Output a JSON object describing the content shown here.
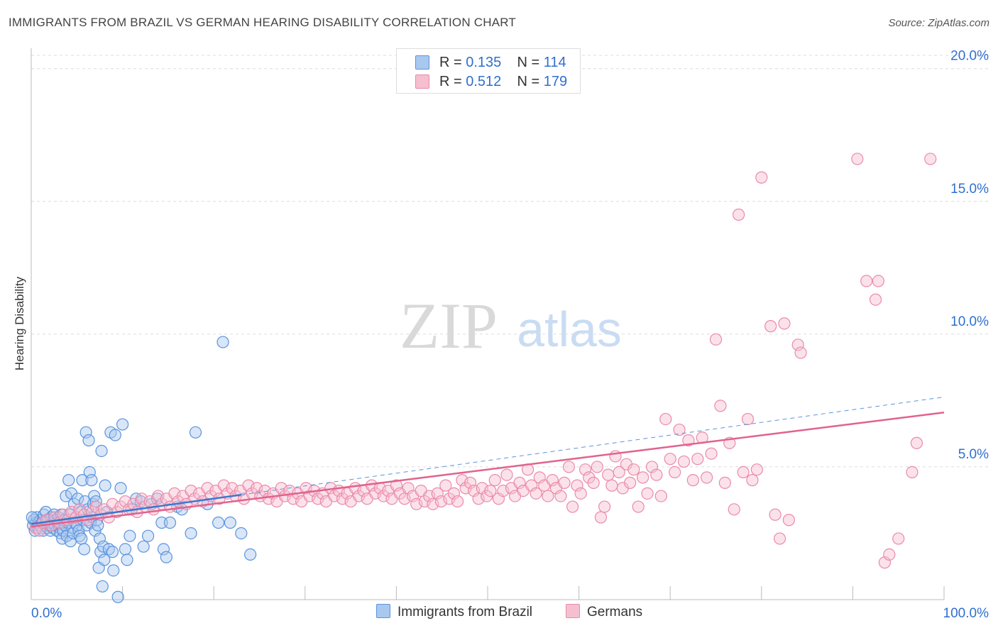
{
  "title": "IMMIGRANTS FROM BRAZIL VS GERMAN HEARING DISABILITY CORRELATION CHART",
  "source": "Source: ZipAtlas.com",
  "watermark": {
    "zip": "ZIP",
    "atlas": "atlas"
  },
  "legend_stats": [
    {
      "r_label": "R =",
      "r_value": "0.135",
      "n_label": "N =",
      "n_value": "114"
    },
    {
      "r_label": "R =",
      "r_value": "0.512",
      "n_label": "N =",
      "n_value": "179"
    }
  ],
  "colors": {
    "brazil_fill": "#a9c8ef",
    "brazil_stroke": "#5b93dc",
    "brazil_line": "#3a78cf",
    "germans_fill": "#f6bfd0",
    "germans_stroke": "#ea8aa9",
    "germans_line": "#e0638e",
    "value_text": "#2f6fcf"
  },
  "chart_data": {
    "type": "scatter",
    "title": "IMMIGRANTS FROM BRAZIL VS GERMAN HEARING DISABILITY CORRELATION CHART",
    "xlabel": "",
    "ylabel": "Hearing Disability",
    "xlim": [
      0,
      100
    ],
    "ylim": [
      0,
      20.5
    ],
    "x_tick_labels": [
      "0.0%",
      "100.0%"
    ],
    "y_ticks": [
      5,
      10,
      15,
      20
    ],
    "y_tick_labels": [
      "5.0%",
      "10.0%",
      "15.0%",
      "20.0%"
    ],
    "grid": true,
    "legend_position": "bottom",
    "series": [
      {
        "name": "Immigrants from Brazil",
        "r": 0.135,
        "n": 114,
        "trend": {
          "x": [
            0,
            23
          ],
          "y": [
            2.85,
            3.95
          ]
        },
        "points": [
          [
            0.2,
            2.8
          ],
          [
            0.3,
            3.0
          ],
          [
            0.4,
            2.6
          ],
          [
            0.5,
            2.9
          ],
          [
            0.6,
            3.1
          ],
          [
            0.7,
            2.7
          ],
          [
            0.8,
            2.9
          ],
          [
            0.9,
            2.8
          ],
          [
            1.0,
            3.0
          ],
          [
            1.1,
            2.7
          ],
          [
            1.2,
            2.9
          ],
          [
            1.3,
            2.6
          ],
          [
            1.4,
            3.2
          ],
          [
            1.5,
            2.8
          ],
          [
            1.6,
            3.3
          ],
          [
            1.7,
            2.9
          ],
          [
            1.8,
            2.7
          ],
          [
            1.9,
            3.0
          ],
          [
            2.0,
            2.8
          ],
          [
            2.1,
            2.6
          ],
          [
            2.2,
            3.1
          ],
          [
            2.3,
            2.9
          ],
          [
            2.4,
            2.7
          ],
          [
            2.5,
            3.2
          ],
          [
            2.6,
            2.8
          ],
          [
            2.7,
            3.0
          ],
          [
            2.8,
            2.6
          ],
          [
            2.9,
            2.9
          ],
          [
            3.0,
            3.1
          ],
          [
            3.1,
            2.7
          ],
          [
            3.2,
            2.5
          ],
          [
            3.3,
            3.2
          ],
          [
            3.4,
            2.3
          ],
          [
            3.5,
            2.6
          ],
          [
            3.6,
            3.0
          ],
          [
            3.7,
            2.8
          ],
          [
            3.8,
            3.9
          ],
          [
            3.9,
            2.4
          ],
          [
            4.0,
            2.9
          ],
          [
            4.1,
            4.5
          ],
          [
            4.2,
            3.2
          ],
          [
            4.3,
            2.2
          ],
          [
            4.4,
            4.0
          ],
          [
            4.5,
            2.7
          ],
          [
            4.6,
            2.5
          ],
          [
            4.7,
            3.6
          ],
          [
            4.8,
            2.9
          ],
          [
            4.9,
            3.1
          ],
          [
            5.0,
            2.8
          ],
          [
            5.1,
            3.8
          ],
          [
            5.2,
            2.6
          ],
          [
            5.3,
            2.4
          ],
          [
            5.4,
            3.3
          ],
          [
            5.5,
            2.3
          ],
          [
            5.6,
            4.5
          ],
          [
            5.7,
            3.0
          ],
          [
            5.8,
            1.9
          ],
          [
            5.9,
            3.7
          ],
          [
            6.0,
            6.3
          ],
          [
            6.1,
            2.8
          ],
          [
            6.2,
            3.4
          ],
          [
            6.3,
            6.0
          ],
          [
            6.4,
            4.8
          ],
          [
            6.5,
            2.9
          ],
          [
            6.6,
            4.5
          ],
          [
            6.7,
            3.1
          ],
          [
            6.8,
            3.6
          ],
          [
            6.9,
            3.9
          ],
          [
            7.0,
            2.6
          ],
          [
            7.1,
            3.7
          ],
          [
            7.2,
            3.0
          ],
          [
            7.3,
            2.8
          ],
          [
            7.4,
            1.2
          ],
          [
            7.5,
            2.3
          ],
          [
            7.6,
            1.8
          ],
          [
            7.7,
            5.6
          ],
          [
            7.8,
            0.5
          ],
          [
            7.9,
            2.0
          ],
          [
            8.0,
            1.5
          ],
          [
            8.1,
            4.3
          ],
          [
            8.3,
            3.3
          ],
          [
            8.5,
            1.9
          ],
          [
            8.7,
            6.3
          ],
          [
            8.9,
            1.8
          ],
          [
            9.0,
            1.1
          ],
          [
            9.2,
            6.2
          ],
          [
            9.5,
            0.1
          ],
          [
            9.8,
            4.2
          ],
          [
            10.0,
            6.6
          ],
          [
            10.3,
            1.9
          ],
          [
            10.5,
            1.5
          ],
          [
            10.8,
            2.4
          ],
          [
            11.0,
            3.4
          ],
          [
            11.5,
            3.8
          ],
          [
            12.0,
            3.7
          ],
          [
            12.3,
            2.0
          ],
          [
            12.8,
            2.4
          ],
          [
            13.2,
            3.6
          ],
          [
            13.8,
            3.8
          ],
          [
            14.3,
            2.9
          ],
          [
            14.5,
            1.9
          ],
          [
            14.8,
            1.6
          ],
          [
            15.2,
            2.9
          ],
          [
            16.0,
            3.5
          ],
          [
            16.5,
            3.4
          ],
          [
            17.5,
            2.5
          ],
          [
            18.0,
            6.3
          ],
          [
            19.3,
            3.6
          ],
          [
            20.5,
            2.9
          ],
          [
            21.0,
            9.7
          ],
          [
            21.8,
            2.9
          ],
          [
            23.0,
            2.5
          ],
          [
            24.0,
            1.7
          ],
          [
            0.1,
            3.1
          ]
        ]
      },
      {
        "name": "Germans",
        "r": 0.512,
        "n": 179,
        "trend": {
          "x": [
            0,
            100
          ],
          "y": [
            2.75,
            7.05
          ]
        },
        "points": [
          [
            0.5,
            2.7
          ],
          [
            0.9,
            2.6
          ],
          [
            1.3,
            2.9
          ],
          [
            1.7,
            3.0
          ],
          [
            2.2,
            2.8
          ],
          [
            2.6,
            3.1
          ],
          [
            3.1,
            2.9
          ],
          [
            3.5,
            3.2
          ],
          [
            4.0,
            3.0
          ],
          [
            4.4,
            3.3
          ],
          [
            4.9,
            3.1
          ],
          [
            5.3,
            3.4
          ],
          [
            5.8,
            3.2
          ],
          [
            6.2,
            3.0
          ],
          [
            6.7,
            3.3
          ],
          [
            7.1,
            3.5
          ],
          [
            7.6,
            3.2
          ],
          [
            8.0,
            3.4
          ],
          [
            8.5,
            3.1
          ],
          [
            8.9,
            3.6
          ],
          [
            9.4,
            3.3
          ],
          [
            9.8,
            3.5
          ],
          [
            10.3,
            3.7
          ],
          [
            10.7,
            3.4
          ],
          [
            11.2,
            3.6
          ],
          [
            11.6,
            3.3
          ],
          [
            12.1,
            3.8
          ],
          [
            12.5,
            3.5
          ],
          [
            13.0,
            3.7
          ],
          [
            13.4,
            3.4
          ],
          [
            13.9,
            3.9
          ],
          [
            14.3,
            3.6
          ],
          [
            14.8,
            3.8
          ],
          [
            15.2,
            3.5
          ],
          [
            15.7,
            4.0
          ],
          [
            16.1,
            3.7
          ],
          [
            16.6,
            3.9
          ],
          [
            17.0,
            3.6
          ],
          [
            17.5,
            4.1
          ],
          [
            17.9,
            3.8
          ],
          [
            18.4,
            4.0
          ],
          [
            18.8,
            3.7
          ],
          [
            19.3,
            4.2
          ],
          [
            19.7,
            3.9
          ],
          [
            20.2,
            4.1
          ],
          [
            20.6,
            3.8
          ],
          [
            21.1,
            4.3
          ],
          [
            21.5,
            4.0
          ],
          [
            22.0,
            4.2
          ],
          [
            22.4,
            3.9
          ],
          [
            22.9,
            4.1
          ],
          [
            23.3,
            3.8
          ],
          [
            23.8,
            4.3
          ],
          [
            24.2,
            4.0
          ],
          [
            24.7,
            4.2
          ],
          [
            25.1,
            3.9
          ],
          [
            25.6,
            4.1
          ],
          [
            26.0,
            3.8
          ],
          [
            26.5,
            4.0
          ],
          [
            26.9,
            3.7
          ],
          [
            27.4,
            4.2
          ],
          [
            27.8,
            3.9
          ],
          [
            28.3,
            4.1
          ],
          [
            28.7,
            3.8
          ],
          [
            29.2,
            4.0
          ],
          [
            29.6,
            3.7
          ],
          [
            30.1,
            4.2
          ],
          [
            30.5,
            3.9
          ],
          [
            31.0,
            4.1
          ],
          [
            31.4,
            3.8
          ],
          [
            31.9,
            4.0
          ],
          [
            32.3,
            3.7
          ],
          [
            32.8,
            4.2
          ],
          [
            33.2,
            3.9
          ],
          [
            33.7,
            4.1
          ],
          [
            34.1,
            3.8
          ],
          [
            34.6,
            4.0
          ],
          [
            35.0,
            3.7
          ],
          [
            35.5,
            4.2
          ],
          [
            35.9,
            3.9
          ],
          [
            36.4,
            4.1
          ],
          [
            36.8,
            3.8
          ],
          [
            37.3,
            4.3
          ],
          [
            37.7,
            4.0
          ],
          [
            38.2,
            4.2
          ],
          [
            38.6,
            3.9
          ],
          [
            39.1,
            4.1
          ],
          [
            39.5,
            3.8
          ],
          [
            40.0,
            4.3
          ],
          [
            40.4,
            4.0
          ],
          [
            40.9,
            3.8
          ],
          [
            41.3,
            4.2
          ],
          [
            41.8,
            3.9
          ],
          [
            42.2,
            3.6
          ],
          [
            42.7,
            4.1
          ],
          [
            43.1,
            3.7
          ],
          [
            43.6,
            3.9
          ],
          [
            44.0,
            3.6
          ],
          [
            44.5,
            4.0
          ],
          [
            44.9,
            3.7
          ],
          [
            45.4,
            4.3
          ],
          [
            45.8,
            3.8
          ],
          [
            46.3,
            4.0
          ],
          [
            46.7,
            3.7
          ],
          [
            47.2,
            4.5
          ],
          [
            47.6,
            4.2
          ],
          [
            48.1,
            4.4
          ],
          [
            48.5,
            4.1
          ],
          [
            49.0,
            3.8
          ],
          [
            49.4,
            4.2
          ],
          [
            49.9,
            3.9
          ],
          [
            50.3,
            4.1
          ],
          [
            50.8,
            4.5
          ],
          [
            51.2,
            3.8
          ],
          [
            51.7,
            4.1
          ],
          [
            52.1,
            4.7
          ],
          [
            52.6,
            4.2
          ],
          [
            53.0,
            3.9
          ],
          [
            53.5,
            4.4
          ],
          [
            53.9,
            4.1
          ],
          [
            54.4,
            4.9
          ],
          [
            54.8,
            4.3
          ],
          [
            55.3,
            4.0
          ],
          [
            55.7,
            4.6
          ],
          [
            56.2,
            4.3
          ],
          [
            56.6,
            3.9
          ],
          [
            57.1,
            4.5
          ],
          [
            57.5,
            4.2
          ],
          [
            58.0,
            3.9
          ],
          [
            58.4,
            4.4
          ],
          [
            58.9,
            5.0
          ],
          [
            59.3,
            3.5
          ],
          [
            59.8,
            4.3
          ],
          [
            60.2,
            4.0
          ],
          [
            60.7,
            4.9
          ],
          [
            61.1,
            4.6
          ],
          [
            61.6,
            4.4
          ],
          [
            62.0,
            5.0
          ],
          [
            62.4,
            3.1
          ],
          [
            62.8,
            3.5
          ],
          [
            63.2,
            4.7
          ],
          [
            63.6,
            4.3
          ],
          [
            64.0,
            5.4
          ],
          [
            64.4,
            4.8
          ],
          [
            64.8,
            4.2
          ],
          [
            65.2,
            5.1
          ],
          [
            65.6,
            4.4
          ],
          [
            66.0,
            4.9
          ],
          [
            66.5,
            3.5
          ],
          [
            67.0,
            4.6
          ],
          [
            67.5,
            4.0
          ],
          [
            68.0,
            5.0
          ],
          [
            68.5,
            4.7
          ],
          [
            69.0,
            3.9
          ],
          [
            69.5,
            6.8
          ],
          [
            70.0,
            5.3
          ],
          [
            70.5,
            4.8
          ],
          [
            71.0,
            6.4
          ],
          [
            71.5,
            5.2
          ],
          [
            72.0,
            6.0
          ],
          [
            72.5,
            4.5
          ],
          [
            73.0,
            5.3
          ],
          [
            73.5,
            6.1
          ],
          [
            74.0,
            4.6
          ],
          [
            74.5,
            5.5
          ],
          [
            75.0,
            9.8
          ],
          [
            75.5,
            7.3
          ],
          [
            76.0,
            4.4
          ],
          [
            76.5,
            5.9
          ],
          [
            77.0,
            3.4
          ],
          [
            77.5,
            14.5
          ],
          [
            78.0,
            4.8
          ],
          [
            78.5,
            6.8
          ],
          [
            79.0,
            4.5
          ],
          [
            79.5,
            4.9
          ],
          [
            80.0,
            15.9
          ],
          [
            81.0,
            10.3
          ],
          [
            81.5,
            3.2
          ],
          [
            82.0,
            2.3
          ],
          [
            82.5,
            10.4
          ],
          [
            83.0,
            3.0
          ],
          [
            84.0,
            9.6
          ],
          [
            84.3,
            9.3
          ],
          [
            90.5,
            16.6
          ],
          [
            91.5,
            12.0
          ],
          [
            92.5,
            11.3
          ],
          [
            92.8,
            12.0
          ],
          [
            93.5,
            1.4
          ],
          [
            94.0,
            1.7
          ],
          [
            95.0,
            2.3
          ],
          [
            96.5,
            4.8
          ],
          [
            97.0,
            5.9
          ],
          [
            98.5,
            16.6
          ]
        ]
      }
    ]
  }
}
